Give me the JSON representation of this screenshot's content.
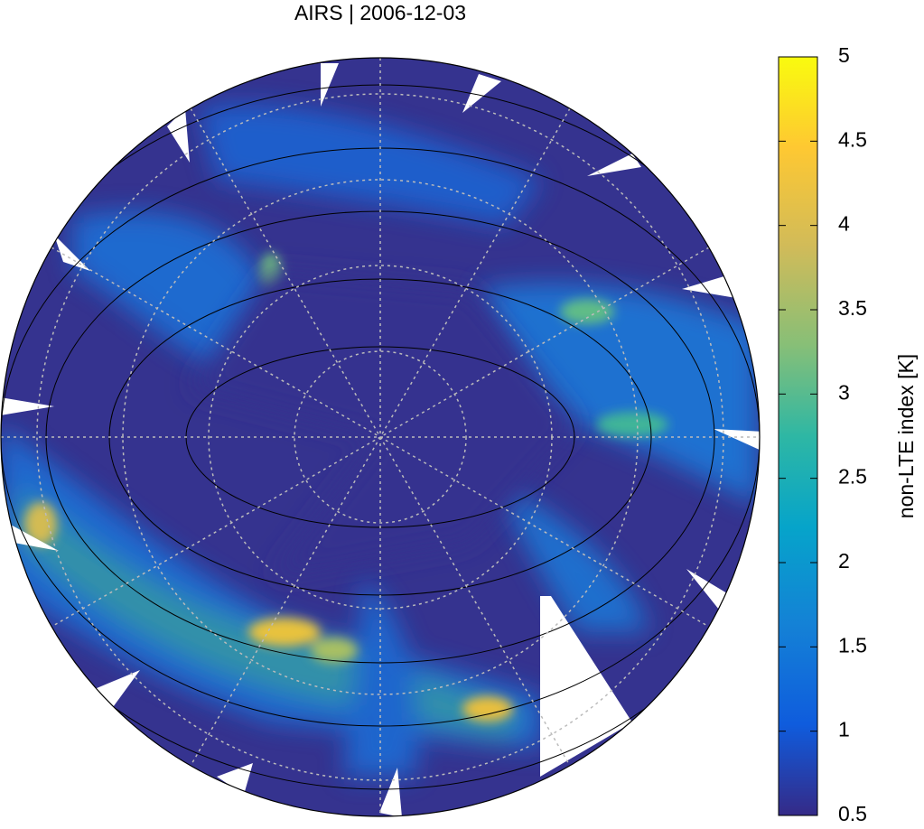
{
  "title": "AIRS | 2006-12-03",
  "colorbar": {
    "label": "non-LTE index [K]",
    "range": [
      0.5,
      5
    ],
    "ticks": [
      0.5,
      1,
      1.5,
      2,
      2.5,
      3,
      3.5,
      4,
      4.5,
      5
    ]
  }
}
